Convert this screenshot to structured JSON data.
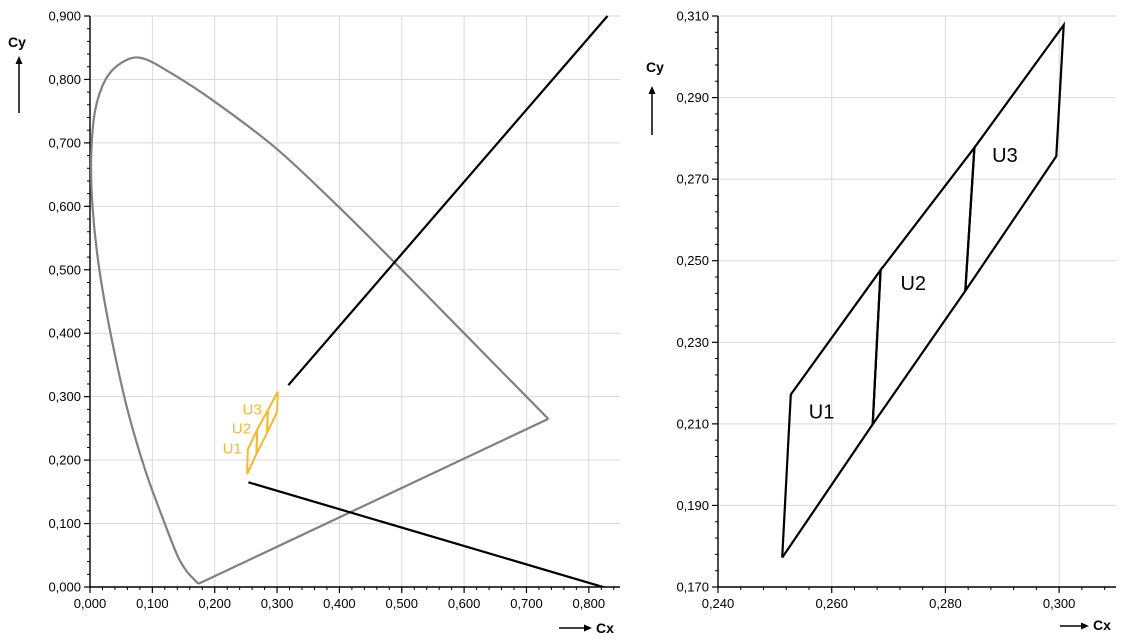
{
  "colors": {
    "gridline": "#d9d9d9",
    "axis": "#000000",
    "locus": "#808080",
    "regions_small": "#f2b92f",
    "regions_zoom": "#000000",
    "pointer_lines": "#000000"
  },
  "chart_data": [
    {
      "type": "line",
      "xlabel": "Cx",
      "ylabel": "Cy",
      "xlim": [
        0,
        0.85
      ],
      "ylim": [
        0,
        0.9
      ],
      "x_ticks": [
        "0,000",
        "0,100",
        "0,200",
        "0,300",
        "0,400",
        "0,500",
        "0,600",
        "0,700",
        "0,800"
      ],
      "x_tick_values": [
        0,
        0.1,
        0.2,
        0.3,
        0.4,
        0.5,
        0.6,
        0.7,
        0.8
      ],
      "y_ticks": [
        "0,000",
        "0,100",
        "0,200",
        "0,300",
        "0,400",
        "0,500",
        "0,600",
        "0,700",
        "0,800",
        "0,900"
      ],
      "y_tick_values": [
        0,
        0.1,
        0.2,
        0.3,
        0.4,
        0.5,
        0.6,
        0.7,
        0.8,
        0.9
      ],
      "grid": true,
      "spectral_locus": {
        "x": [
          0.174,
          0.155,
          0.14,
          0.12,
          0.09,
          0.06,
          0.035,
          0.015,
          0.004,
          0.002,
          0.008,
          0.025,
          0.05,
          0.082,
          0.13,
          0.2,
          0.3,
          0.4,
          0.5,
          0.6,
          0.7,
          0.735
        ],
        "y": [
          0.005,
          0.025,
          0.05,
          0.1,
          0.18,
          0.28,
          0.39,
          0.5,
          0.6,
          0.68,
          0.75,
          0.8,
          0.826,
          0.834,
          0.81,
          0.765,
          0.69,
          0.598,
          0.5,
          0.4,
          0.3,
          0.265
        ]
      },
      "purple_line": {
        "x": [
          0.735,
          0.174
        ],
        "y": [
          0.265,
          0.005
        ]
      },
      "regions": [
        {
          "label": "U1",
          "x": [
            0.252,
            0.253,
            0.268,
            0.267,
            0.252
          ],
          "y": [
            0.178,
            0.217,
            0.248,
            0.21,
            0.178
          ]
        },
        {
          "label": "U2",
          "x": [
            0.267,
            0.268,
            0.285,
            0.284,
            0.267
          ],
          "y": [
            0.21,
            0.248,
            0.278,
            0.243,
            0.21
          ]
        },
        {
          "label": "U3",
          "x": [
            0.284,
            0.285,
            0.301,
            0.3,
            0.284
          ],
          "y": [
            0.243,
            0.278,
            0.308,
            0.276,
            0.243
          ]
        }
      ],
      "pointer_lines": [
        {
          "x": [
            0.318,
            0.83
          ],
          "y": [
            0.318,
            0.9
          ]
        },
        {
          "x": [
            0.254,
            0.84
          ],
          "y": [
            0.165,
            -0.005
          ]
        }
      ]
    },
    {
      "type": "line",
      "xlabel": "Cx",
      "ylabel": "Cy",
      "xlim": [
        0.24,
        0.31
      ],
      "ylim": [
        0.17,
        0.31
      ],
      "x_ticks": [
        "0,240",
        "0,260",
        "0,280",
        "0,300"
      ],
      "x_tick_values": [
        0.24,
        0.26,
        0.28,
        0.3
      ],
      "y_ticks": [
        "0,170",
        "0,190",
        "0,210",
        "0,230",
        "0,250",
        "0,270",
        "0,290",
        "0,310"
      ],
      "y_tick_values": [
        0.17,
        0.19,
        0.21,
        0.23,
        0.25,
        0.27,
        0.29,
        0.31
      ],
      "grid": true,
      "regions": [
        {
          "label": "U1",
          "x": [
            0.2513,
            0.2528,
            0.2686,
            0.2672,
            0.2513
          ],
          "y": [
            0.1772,
            0.2172,
            0.2477,
            0.2099,
            0.1772
          ]
        },
        {
          "label": "U2",
          "x": [
            0.2672,
            0.2686,
            0.2851,
            0.2835,
            0.2672
          ],
          "y": [
            0.2099,
            0.2477,
            0.2777,
            0.2426,
            0.2099
          ]
        },
        {
          "label": "U3",
          "x": [
            0.2835,
            0.2851,
            0.3008,
            0.2995,
            0.2835
          ],
          "y": [
            0.2426,
            0.2777,
            0.3078,
            0.2756,
            0.2426
          ]
        }
      ]
    }
  ]
}
